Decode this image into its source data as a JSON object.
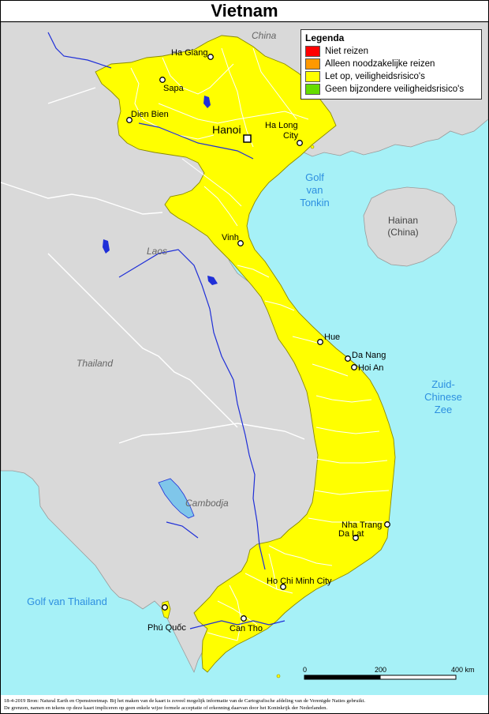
{
  "title": "Vietnam",
  "legend": {
    "title": "Legenda",
    "items": [
      {
        "label": "Niet reizen",
        "color": "#ff0000"
      },
      {
        "label": "Alleen noodzakelijke reizen",
        "color": "#ff9900"
      },
      {
        "label": "Let op, veiligheidsrisico's",
        "color": "#ffff00"
      },
      {
        "label": "Geen bijzondere veiligheidsrisico's",
        "color": "#66dd00"
      }
    ]
  },
  "colors": {
    "sea": "#a6f1f7",
    "land": "#d9d9d9",
    "vietnam": "#ffff00",
    "water_text": "#2d8fe0",
    "rivers": "#1f2fd8",
    "borders": "#ffffff"
  },
  "countries": {
    "china": "China",
    "laos": "Laos",
    "thailand": "Thailand",
    "cambodja": "Cambodja",
    "hainan_line1": "Hainan",
    "hainan_line2": "(China)"
  },
  "seas": {
    "tonkin": [
      "Golf",
      "van",
      "Tonkin"
    ],
    "south_china": [
      "Zuid-",
      "Chinese",
      "Zee"
    ],
    "thailand_gulf": "Golf van Thailand"
  },
  "cities": {
    "hanoi": "Hanoi",
    "ha_giang": "Ha Giang",
    "sapa": "Sapa",
    "dien_bien": "Dien Bien",
    "ha_long_1": "Ha Long",
    "ha_long_2": "City",
    "vinh": "Vinh",
    "hue": "Hue",
    "da_nang": "Da Nang",
    "hoi_an": "Hoi An",
    "nha_trang": "Nha Trang",
    "da_lat": "Da Lat",
    "hcmc": "Ho Chi Minh City",
    "phu_quoc": "Phú Quốc",
    "can_tho": "Can Tho"
  },
  "scale": {
    "labels": [
      "0",
      "200",
      "400 km"
    ],
    "ticks_km": [
      0,
      200,
      400
    ]
  },
  "source_lines": [
    "18-4-2019 Bron: Natural Earth en Openstreetmap. Bij het maken van de kaart is zoveel mogelijk informatie van de Cartografische afdeling van de Verenigde Naties gebruikt.",
    "De grenzen, namen en tekens op deze kaart impliceren op geen enkele wijze formele acceptatie of erkenning daarvan door het Koninkrijk der Nederlanden."
  ]
}
